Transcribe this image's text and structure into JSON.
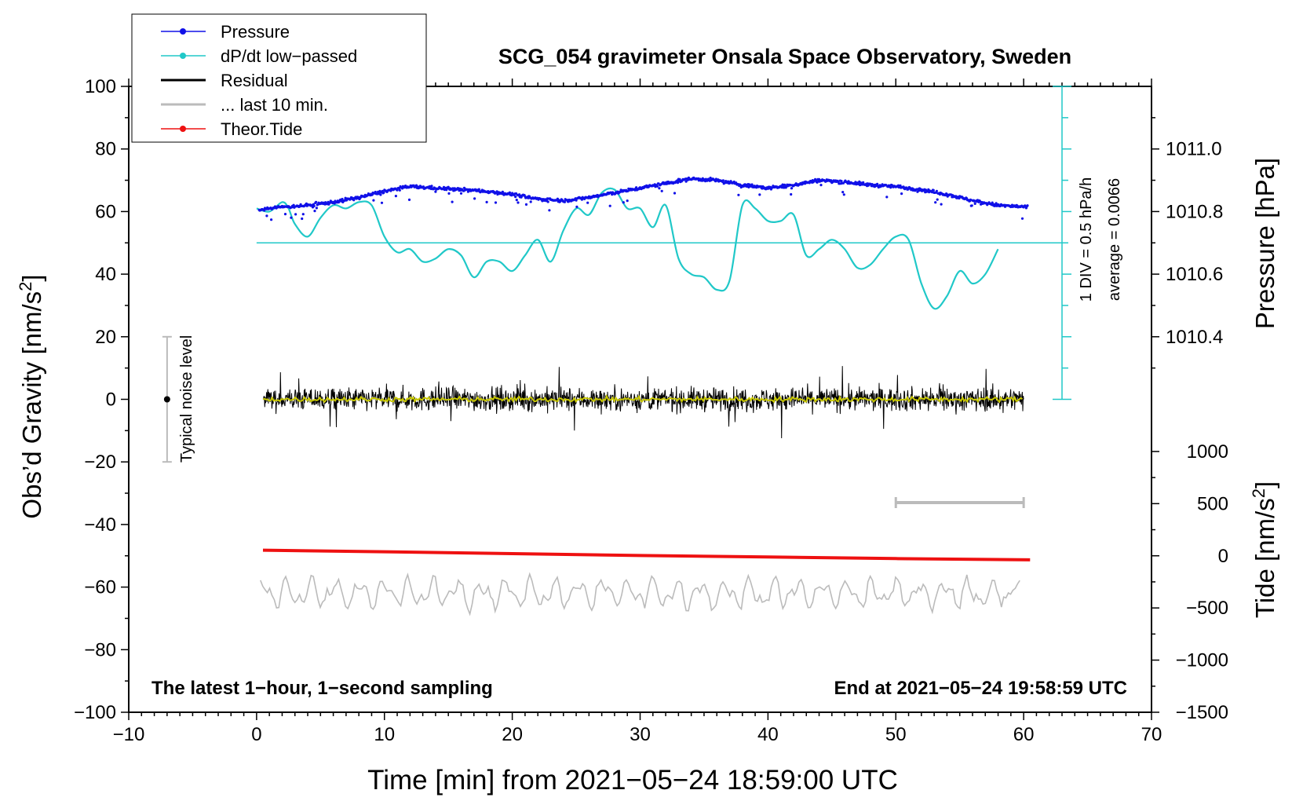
{
  "chart_data": {
    "type": "line",
    "title": "SCG_054 gravimeter Onsala Space Observatory, Sweden",
    "xlabel": "Time [min] from 2021−05−24 18:59:00 UTC",
    "ylabel_left": "Obs’d Gravity [nm/s",
    "ylabel_pressure": "Pressure [hPa]",
    "ylabel_tide": "Tide [nm/s",
    "ylabel_sup": "2",
    "ylabel_close": "]",
    "xlim": [
      -10,
      70
    ],
    "ylim": [
      -100,
      100
    ],
    "x_ticks": [
      "−10",
      "0",
      "10",
      "20",
      "30",
      "40",
      "50",
      "60",
      "70"
    ],
    "y_ticks": [
      "100",
      "80",
      "60",
      "40",
      "20",
      "0",
      "−20",
      "−40",
      "−60",
      "−80",
      "−100"
    ],
    "pressure_axis": {
      "ticks": [
        "1011.0",
        "1010.8",
        "1010.6",
        "1010.4"
      ],
      "tick_values": [
        1011.0,
        1010.8,
        1010.6,
        1010.4
      ],
      "map": {
        "hpa_ref": 1010.8,
        "gravity_ref": 60,
        "gravity_per_hpa": 100
      }
    },
    "tide_axis": {
      "ticks": [
        "1000",
        "500",
        "0",
        "−500",
        "−1000",
        "−1500"
      ],
      "tick_values": [
        1000,
        500,
        0,
        -500,
        -1000,
        -1500
      ],
      "map": {
        "tide_ref": 0,
        "gravity_ref": -50,
        "gravity_per_unit": 0.0333333
      }
    },
    "legend": {
      "position": "top-left",
      "entries": [
        {
          "label": "Pressure",
          "color": "#1010e8",
          "marker": "dot"
        },
        {
          "label": "dP/dt low−passed",
          "color": "#20c8c8",
          "marker": "dot"
        },
        {
          "label": "Residual",
          "color": "#000000",
          "marker": "none"
        },
        {
          "label": "... last 10 min.",
          "color": "#bbbbbb",
          "marker": "none"
        },
        {
          "label": "Theor.Tide",
          "color": "#ee1111",
          "marker": "dot"
        }
      ]
    },
    "annotations": {
      "dpdt_scale": "1 DIV = 0.5 hPa/h",
      "dpdt_average": "average = 0.0066",
      "noise": "Typical noise level",
      "footer_left": "The latest 1−hour, 1−second sampling",
      "footer_right": "End at 2021−05−24 19:58:59 UTC"
    },
    "noise_bar": {
      "x": -7,
      "center": 0,
      "half_range": 20
    },
    "last10_bar": {
      "x_start": 50,
      "x_end": 60,
      "y": -33
    },
    "dpdt_scale_bar": {
      "x": 63,
      "y_top": 100,
      "y_bottom": 0,
      "baseline_y": 50
    },
    "series": [
      {
        "name": "Pressure (gravity units)",
        "x": [
          0,
          2,
          4,
          6,
          8,
          10,
          12,
          14,
          16,
          18,
          20,
          22,
          24,
          26,
          28,
          30,
          32,
          34,
          36,
          38,
          40,
          42,
          44,
          46,
          48,
          50,
          52,
          54,
          56,
          58,
          60
        ],
        "y": [
          60.5,
          61.5,
          62,
          63,
          64.5,
          66.5,
          68,
          67.5,
          67,
          66.5,
          65.5,
          64,
          63.5,
          64.5,
          66,
          67.5,
          69,
          70.5,
          70,
          68.5,
          67.5,
          68.5,
          70,
          69.5,
          68.5,
          68,
          67,
          65.5,
          63.5,
          62,
          61.5
        ],
        "color": "#1010e8"
      },
      {
        "name": "dP/dt low-passed (gravity units)",
        "x": [
          0,
          1,
          2,
          2.5,
          3,
          4,
          5,
          6,
          7,
          8,
          9,
          10,
          11,
          12,
          13,
          14,
          15,
          16,
          17,
          18,
          19,
          20,
          21,
          22,
          23,
          24,
          25,
          26,
          27,
          28,
          29,
          30,
          31,
          32,
          33,
          34,
          35,
          36,
          37,
          38,
          39,
          40,
          41,
          42,
          43,
          44,
          45,
          46,
          47,
          48,
          49,
          50,
          51,
          52,
          53,
          54,
          55,
          56,
          57,
          58
        ],
        "y": [
          61,
          60,
          63,
          61,
          56,
          52,
          58,
          62,
          61,
          63,
          62,
          52,
          47,
          48,
          44,
          45,
          48,
          46,
          39,
          44,
          44,
          41,
          46,
          51,
          44,
          54,
          61,
          59,
          66,
          67,
          61,
          61,
          55,
          62,
          45,
          40,
          39,
          35,
          38,
          62,
          61,
          57,
          57,
          59,
          46,
          48,
          51,
          48,
          42,
          43,
          48,
          52,
          51,
          37,
          29,
          33,
          41,
          37,
          40,
          48
        ],
        "color": "#20c8c8"
      },
      {
        "name": "Residual",
        "x": [
          0.5,
          60
        ],
        "center": 0,
        "amplitude": 8,
        "color": "#000000",
        "smoothed_color": "#c8c800"
      },
      {
        "name": "Theor.Tide (gravity units)",
        "x": [
          0.5,
          10,
          20,
          30,
          40,
          50,
          60.5
        ],
        "y": [
          -48.2,
          -48.7,
          -49.3,
          -49.9,
          -50.4,
          -50.9,
          -51.3
        ],
        "color": "#ee1111"
      },
      {
        "name": "... last 10 min. (overlaid)",
        "x": [
          0,
          60
        ],
        "center": -62,
        "amplitude": 7,
        "color": "#bbbbbb"
      }
    ]
  }
}
